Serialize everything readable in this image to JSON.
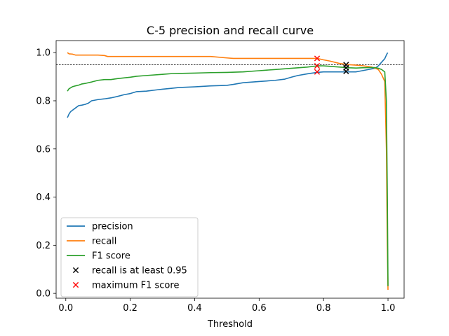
{
  "chart_data": {
    "type": "line",
    "title": "C-5 precision and recall curve",
    "xlabel": "Threshold",
    "ylabel": "",
    "xlim": [
      -0.03,
      1.05
    ],
    "ylim": [
      -0.02,
      1.05
    ],
    "xticks": [
      "0.0",
      "0.2",
      "0.4",
      "0.6",
      "0.8",
      "1.0"
    ],
    "xtick_values": [
      0,
      0.2,
      0.4,
      0.6,
      0.8,
      1.0
    ],
    "yticks": [
      "0.0",
      "0.2",
      "0.4",
      "0.6",
      "0.8",
      "1.0"
    ],
    "ytick_values": [
      0,
      0.2,
      0.4,
      0.6,
      0.8,
      1.0
    ],
    "grid": false,
    "legend_position": "lower-left",
    "reference_line": {
      "y": 0.95,
      "style": "dashed",
      "color": "#000000"
    },
    "series": [
      {
        "name": "precision",
        "color": "#1f77b4",
        "x": [
          0.005,
          0.01,
          0.015,
          0.02,
          0.03,
          0.04,
          0.05,
          0.06,
          0.07,
          0.08,
          0.1,
          0.12,
          0.14,
          0.16,
          0.18,
          0.2,
          0.22,
          0.25,
          0.28,
          0.3,
          0.33,
          0.35,
          0.4,
          0.45,
          0.5,
          0.52,
          0.55,
          0.6,
          0.65,
          0.68,
          0.7,
          0.72,
          0.75,
          0.78,
          0.8,
          0.85,
          0.88,
          0.9,
          0.92,
          0.94,
          0.96,
          0.97,
          0.98,
          0.99,
          0.995,
          0.999
        ],
        "y": [
          0.73,
          0.745,
          0.755,
          0.76,
          0.77,
          0.78,
          0.782,
          0.785,
          0.79,
          0.8,
          0.805,
          0.808,
          0.812,
          0.818,
          0.825,
          0.83,
          0.838,
          0.84,
          0.845,
          0.848,
          0.852,
          0.855,
          0.858,
          0.862,
          0.864,
          0.868,
          0.875,
          0.88,
          0.885,
          0.89,
          0.898,
          0.905,
          0.912,
          0.918,
          0.92,
          0.92,
          0.92,
          0.92,
          0.925,
          0.93,
          0.935,
          0.945,
          0.96,
          0.975,
          0.99,
          1.0
        ]
      },
      {
        "name": "recall",
        "color": "#ff7f0e",
        "x": [
          0.005,
          0.01,
          0.02,
          0.03,
          0.05,
          0.1,
          0.12,
          0.13,
          0.2,
          0.3,
          0.4,
          0.45,
          0.5,
          0.52,
          0.6,
          0.7,
          0.78,
          0.8,
          0.82,
          0.85,
          0.88,
          0.9,
          0.92,
          0.95,
          0.97,
          0.98,
          0.99,
          0.995,
          0.998,
          1.0
        ],
        "y": [
          1.0,
          0.995,
          0.994,
          0.99,
          0.99,
          0.99,
          0.988,
          0.984,
          0.984,
          0.984,
          0.984,
          0.984,
          0.978,
          0.976,
          0.976,
          0.976,
          0.976,
          0.97,
          0.965,
          0.955,
          0.95,
          0.948,
          0.946,
          0.94,
          0.93,
          0.91,
          0.88,
          0.6,
          0.2,
          0.015
        ]
      },
      {
        "name": "F1 score",
        "color": "#2ca02c",
        "x": [
          0.005,
          0.01,
          0.02,
          0.03,
          0.04,
          0.05,
          0.06,
          0.08,
          0.1,
          0.12,
          0.14,
          0.16,
          0.2,
          0.22,
          0.25,
          0.3,
          0.33,
          0.4,
          0.45,
          0.5,
          0.55,
          0.6,
          0.65,
          0.7,
          0.75,
          0.78,
          0.8,
          0.85,
          0.88,
          0.9,
          0.92,
          0.94,
          0.96,
          0.97,
          0.98,
          0.99,
          0.995,
          0.998,
          1.0
        ],
        "y": [
          0.84,
          0.85,
          0.858,
          0.862,
          0.865,
          0.87,
          0.872,
          0.878,
          0.885,
          0.888,
          0.888,
          0.892,
          0.898,
          0.902,
          0.905,
          0.91,
          0.913,
          0.915,
          0.917,
          0.918,
          0.92,
          0.925,
          0.93,
          0.935,
          0.94,
          0.945,
          0.945,
          0.94,
          0.937,
          0.936,
          0.937,
          0.938,
          0.938,
          0.935,
          0.93,
          0.92,
          0.8,
          0.4,
          0.03
        ]
      }
    ],
    "markers": [
      {
        "name": "recall is at least 0.95",
        "color": "#000000",
        "symbol": "x",
        "points": [
          {
            "x": 0.87,
            "y": 0.95
          },
          {
            "x": 0.87,
            "y": 0.937
          },
          {
            "x": 0.87,
            "y": 0.922
          }
        ]
      },
      {
        "name": "maximum F1 score",
        "color": "#ff0000",
        "symbol": "x",
        "points": [
          {
            "x": 0.78,
            "y": 0.976
          },
          {
            "x": 0.78,
            "y": 0.945
          },
          {
            "x": 0.78,
            "y": 0.92
          }
        ]
      }
    ]
  }
}
